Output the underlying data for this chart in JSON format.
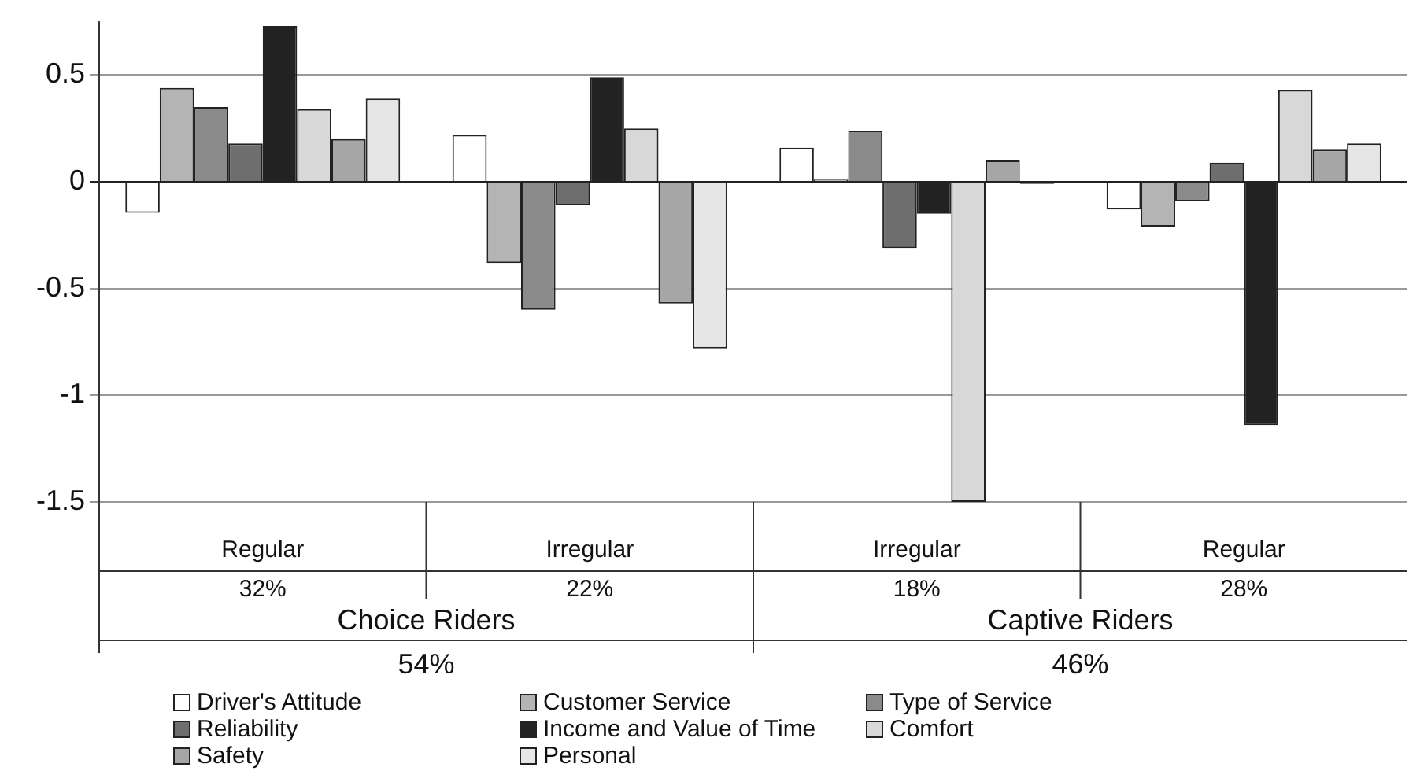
{
  "chart_data": {
    "type": "bar",
    "categories": [
      "Regular",
      "Irregular",
      "Irregular",
      "Regular"
    ],
    "series": [
      {
        "name": "Driver's Attitude",
        "color": "#ffffff",
        "values": [
          -0.145,
          0.22,
          0.16,
          -0.13
        ]
      },
      {
        "name": "Customer Service",
        "color": "#b4b4b4",
        "values": [
          0.44,
          -0.38,
          0.01,
          -0.21
        ]
      },
      {
        "name": "Type of Service",
        "color": "#8a8a8a",
        "values": [
          0.35,
          -0.6,
          0.24,
          -0.09
        ]
      },
      {
        "name": "Reliability",
        "color": "#6e6e6e",
        "values": [
          0.18,
          -0.11,
          -0.31,
          0.09
        ]
      },
      {
        "name": "Income and Value of Time",
        "color": "#222222",
        "values": [
          0.73,
          0.49,
          -0.15,
          -1.14
        ]
      },
      {
        "name": "Comfort",
        "color": "#d8d8d8",
        "values": [
          0.34,
          0.25,
          -1.5,
          0.43
        ]
      },
      {
        "name": "Safety",
        "color": "#a6a6a6",
        "values": [
          0.2,
          -0.57,
          0.1,
          0.15
        ]
      },
      {
        "name": "Personal",
        "color": "#e6e6e6",
        "values": [
          0.39,
          -0.78,
          -0.01,
          0.18
        ]
      }
    ],
    "ylim": [
      -1.5,
      0.75
    ],
    "yticks": [
      -1.5,
      -1,
      -0.5,
      0,
      0.5
    ],
    "grid": "y",
    "legend": "bottom",
    "annotations": [
      "32%",
      "22%",
      "18%",
      "28%",
      "Choice Riders",
      "Captive Riders",
      "54%",
      "46%"
    ]
  }
}
